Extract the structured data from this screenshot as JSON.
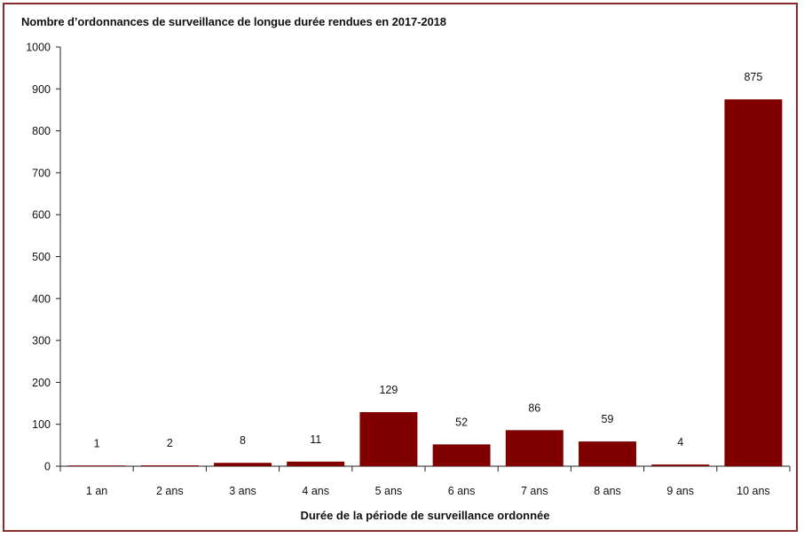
{
  "chart_data": {
    "type": "bar",
    "title": "Nombre d’ordonnances de surveillance de longue durée rendues en 2017-2018",
    "xlabel": "Durée de la période de surveillance ordonnée",
    "ylabel": "",
    "categories": [
      "1 an",
      "2 ans",
      "3 ans",
      "4 ans",
      "5 ans",
      "6 ans",
      "7 ans",
      "8 ans",
      "9 ans",
      "10 ans"
    ],
    "values": [
      1,
      2,
      8,
      11,
      129,
      52,
      86,
      59,
      4,
      875
    ],
    "ylim": [
      0,
      1000
    ],
    "yticks": [
      0,
      100,
      200,
      300,
      400,
      500,
      600,
      700,
      800,
      900,
      1000
    ],
    "grid": false,
    "legend": "none",
    "bar_color": "#800000",
    "frame_color": "#8b2b2b"
  }
}
